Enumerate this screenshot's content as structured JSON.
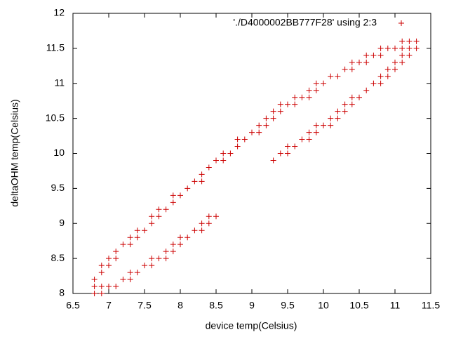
{
  "chart_data": {
    "type": "scatter",
    "xlabel": "device temp(Celsius)",
    "ylabel": "deltaOHM temp(Celsius)",
    "xlim": [
      6.5,
      11.5
    ],
    "ylim": [
      8,
      12
    ],
    "xticks": [
      6.5,
      7,
      7.5,
      8,
      8.5,
      9,
      9.5,
      10,
      10.5,
      11,
      11.5
    ],
    "yticks": [
      8,
      8.5,
      9,
      9.5,
      10,
      10.5,
      11,
      11.5,
      12
    ],
    "grid": false,
    "legend": "top-right",
    "series": [
      {
        "name": "'./D4000002BB777F28' using 2:3",
        "color": "#cc0000",
        "x": [
          6.8,
          6.9,
          6.8,
          6.9,
          7.0,
          7.1,
          6.8,
          7.2,
          7.3,
          6.9,
          7.3,
          7.4,
          6.9,
          7.0,
          7.5,
          7.6,
          7.0,
          7.1,
          7.6,
          7.7,
          7.8,
          7.1,
          7.8,
          7.9,
          7.2,
          7.3,
          7.9,
          8.0,
          7.3,
          7.4,
          8.0,
          8.1,
          7.4,
          7.5,
          8.2,
          8.3,
          7.6,
          8.3,
          8.4,
          7.6,
          7.7,
          8.4,
          8.5,
          7.7,
          7.8,
          7.9,
          7.9,
          8.0,
          8.1,
          8.2,
          8.3,
          8.3,
          8.4,
          8.5,
          8.6,
          9.3,
          8.6,
          8.7,
          9.4,
          9.5,
          8.8,
          9.5,
          9.6,
          8.8,
          8.9,
          9.7,
          9.8,
          9.0,
          9.1,
          9.8,
          9.9,
          9.1,
          9.2,
          9.9,
          10.0,
          10.1,
          9.2,
          9.3,
          10.1,
          10.2,
          9.3,
          9.4,
          10.2,
          10.3,
          9.4,
          9.5,
          9.6,
          10.3,
          10.4,
          9.6,
          9.7,
          9.8,
          10.4,
          10.5,
          9.8,
          9.9,
          10.6,
          9.9,
          10.0,
          10.7,
          10.8,
          10.1,
          10.2,
          10.8,
          10.9,
          10.3,
          10.4,
          10.9,
          11.0,
          10.4,
          10.5,
          10.6,
          11.0,
          11.1,
          10.6,
          10.7,
          10.8,
          11.1,
          11.2,
          10.8,
          10.9,
          11.0,
          11.1,
          11.2,
          11.3,
          11.1,
          11.2,
          11.3
        ],
        "values": [
          8,
          8,
          8.1,
          8.1,
          8.1,
          8.1,
          8.2,
          8.2,
          8.2,
          8.3,
          8.3,
          8.3,
          8.4,
          8.4,
          8.4,
          8.4,
          8.5,
          8.5,
          8.5,
          8.5,
          8.5,
          8.6,
          8.6,
          8.6,
          8.7,
          8.7,
          8.7,
          8.7,
          8.8,
          8.8,
          8.8,
          8.8,
          8.9,
          8.9,
          8.9,
          8.9,
          9,
          9,
          9,
          9.1,
          9.1,
          9.1,
          9.1,
          9.2,
          9.2,
          9.3,
          9.4,
          9.4,
          9.5,
          9.6,
          9.6,
          9.7,
          9.8,
          9.9,
          9.9,
          9.9,
          10,
          10,
          10,
          10,
          10.1,
          10.1,
          10.1,
          10.2,
          10.2,
          10.2,
          10.2,
          10.3,
          10.3,
          10.3,
          10.3,
          10.4,
          10.4,
          10.4,
          10.4,
          10.4,
          10.5,
          10.5,
          10.5,
          10.5,
          10.6,
          10.6,
          10.6,
          10.6,
          10.7,
          10.7,
          10.7,
          10.7,
          10.7,
          10.8,
          10.8,
          10.8,
          10.8,
          10.8,
          10.9,
          10.9,
          10.9,
          11,
          11,
          11,
          11,
          11.1,
          11.1,
          11.1,
          11.1,
          11.2,
          11.2,
          11.2,
          11.2,
          11.3,
          11.3,
          11.3,
          11.3,
          11.3,
          11.4,
          11.4,
          11.4,
          11.4,
          11.4,
          11.5,
          11.5,
          11.5,
          11.5,
          11.5,
          11.5,
          11.6,
          11.6,
          11.6
        ]
      }
    ]
  }
}
